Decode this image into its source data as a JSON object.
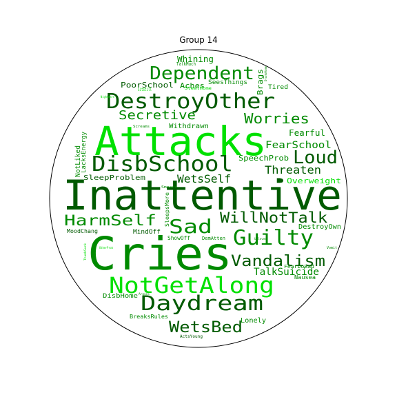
{
  "title": "Group 14",
  "colors": {
    "dark": "#005a00",
    "mid": "#008a00",
    "bright": "#00e000",
    "light": "#7ad97a",
    "circle": "#000000"
  },
  "words": [
    {
      "text": "Inattentive",
      "tone": "dark"
    },
    {
      "text": "Cries",
      "tone": "mid"
    },
    {
      "text": "Attacks",
      "tone": "bright"
    },
    {
      "text": "DestroyOther",
      "tone": "dark"
    },
    {
      "text": "DisbSchool",
      "tone": "dark"
    },
    {
      "text": "NotGetAlong",
      "tone": "bright"
    },
    {
      "text": "Dependent",
      "tone": "mid"
    },
    {
      "text": "Daydream",
      "tone": "dark"
    },
    {
      "text": "Guilty",
      "tone": "mid"
    },
    {
      "text": "Vandalism",
      "tone": "dark"
    },
    {
      "text": "WillNotTalk",
      "tone": "dark"
    },
    {
      "text": "HarmSelf",
      "tone": "mid"
    },
    {
      "text": "Sad",
      "tone": "mid"
    },
    {
      "text": "WetsBed",
      "tone": "dark"
    },
    {
      "text": "Loud",
      "tone": "dark"
    },
    {
      "text": "Worries",
      "tone": "mid"
    },
    {
      "text": "Secretive",
      "tone": "mid"
    },
    {
      "text": "WetsSelf",
      "tone": "dark"
    },
    {
      "text": "Threaten",
      "tone": "dark"
    },
    {
      "text": "TalkSuicide",
      "tone": "mid"
    },
    {
      "text": "FearSchool",
      "tone": "mid"
    },
    {
      "text": "Fearful",
      "tone": "mid"
    },
    {
      "text": "SpeechProb",
      "tone": "mid"
    },
    {
      "text": "Overweight",
      "tone": "bright"
    },
    {
      "text": "Whining",
      "tone": "mid"
    },
    {
      "text": "PoorSchool",
      "tone": "dark"
    },
    {
      "text": "Aches",
      "tone": "mid"
    },
    {
      "text": "SeesThings",
      "tone": "mid"
    },
    {
      "text": "Withdrawn",
      "tone": "mid"
    },
    {
      "text": "SleepProblem",
      "tone": "dark"
    },
    {
      "text": "NotLiked",
      "tone": "mid"
    },
    {
      "text": "LacksEnergy",
      "tone": "mid"
    },
    {
      "text": "Brags",
      "tone": "mid"
    },
    {
      "text": "Tired",
      "tone": "mid"
    },
    {
      "text": "Lonely",
      "tone": "mid"
    },
    {
      "text": "DisbHome",
      "tone": "mid"
    },
    {
      "text": "BreaksRules",
      "tone": "mid"
    },
    {
      "text": "DestroyOwn",
      "tone": "mid"
    },
    {
      "text": "Nausea",
      "tone": "mid"
    },
    {
      "text": "FearDoBad",
      "tone": "mid"
    },
    {
      "text": "MindOff",
      "tone": "dark"
    },
    {
      "text": "MoodChang",
      "tone": "dark"
    },
    {
      "text": "ShowOff",
      "tone": "mid"
    },
    {
      "text": "DemAtten",
      "tone": "mid"
    },
    {
      "text": "SleepsMore",
      "tone": "mid"
    },
    {
      "text": "TalkMuch",
      "tone": "mid"
    },
    {
      "text": "StealHome",
      "tone": "bright"
    },
    {
      "text": "SitStill",
      "tone": "bright"
    },
    {
      "text": "Screams",
      "tone": "mid"
    },
    {
      "text": "Smears",
      "tone": "mid"
    },
    {
      "text": "ActsYoung",
      "tone": "dark"
    },
    {
      "text": "Vomit",
      "tone": "mid"
    },
    {
      "text": "Unloved",
      "tone": "mid"
    },
    {
      "text": "Argues",
      "tone": "mid"
    },
    {
      "text": "DrunkHome",
      "tone": "mid"
    },
    {
      "text": "Nightmare",
      "tone": "bright"
    },
    {
      "text": "ThumbSuck",
      "tone": "bright"
    },
    {
      "text": "OtherProb",
      "tone": "bright"
    }
  ]
}
